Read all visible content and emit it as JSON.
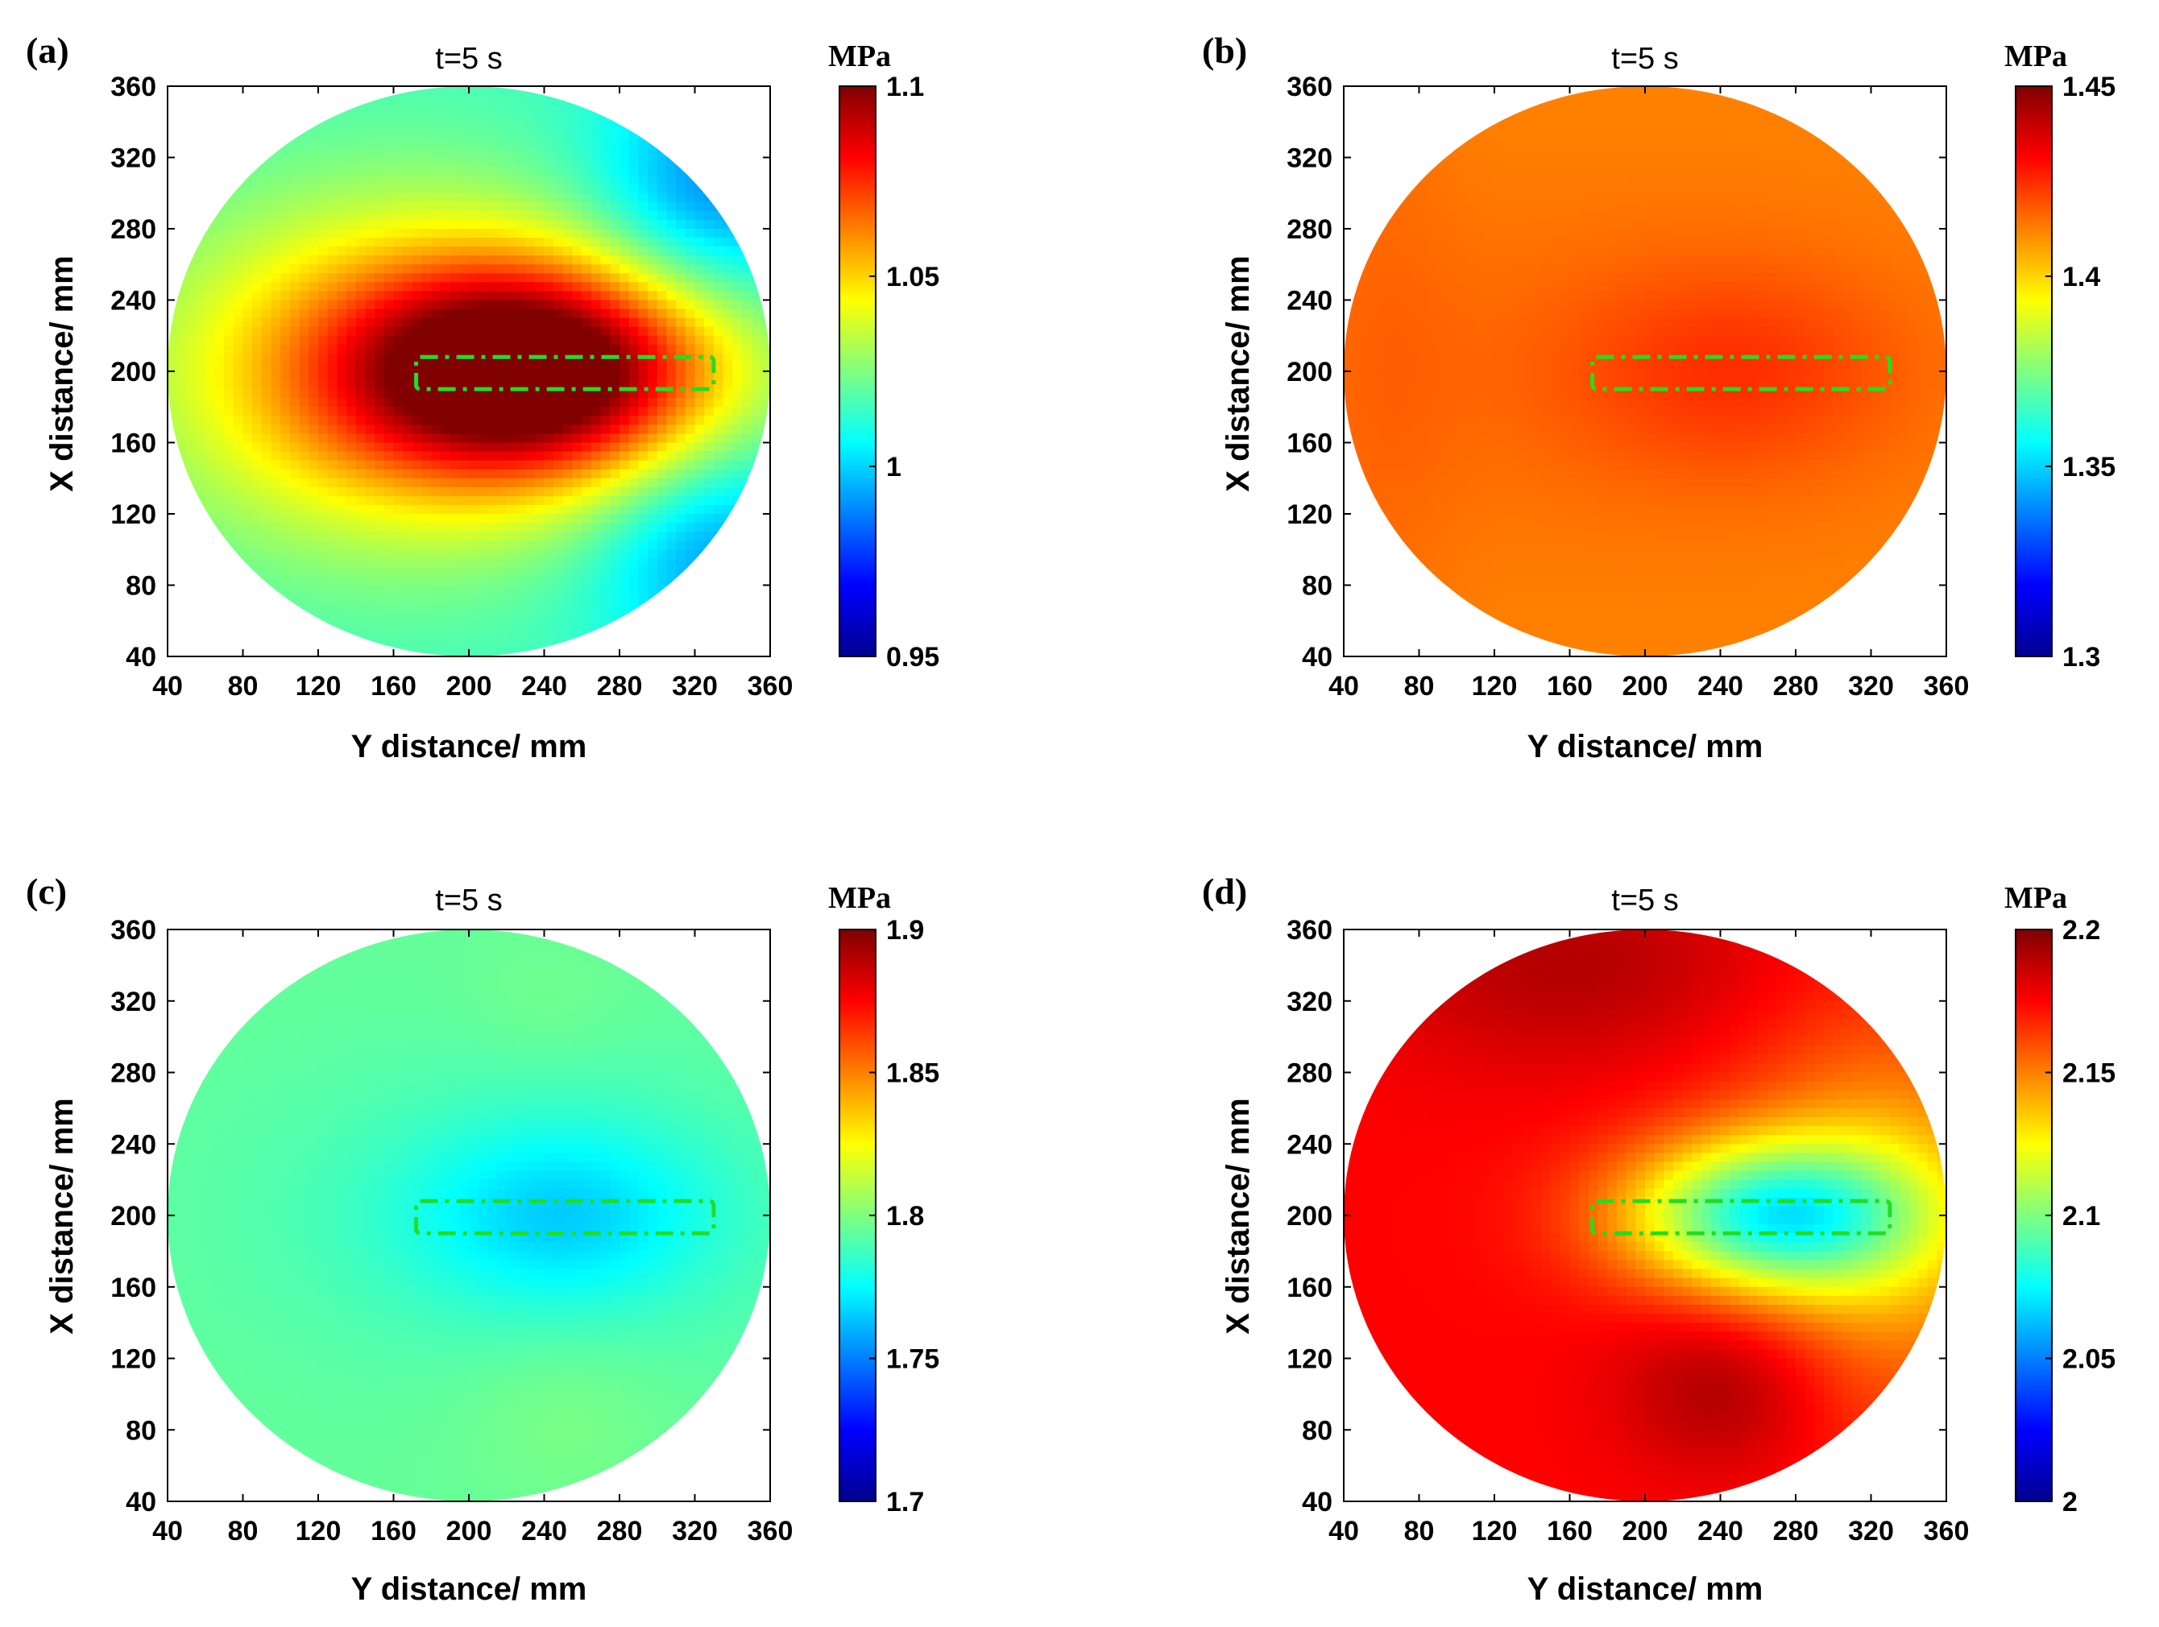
{
  "chart_data": [
    {
      "type": "heatmap",
      "panel_label": "(a)",
      "title": "t=5 s",
      "xlabel": "Y distance/ mm",
      "ylabel": "X distance/ mm",
      "xticks": [
        "40",
        "80",
        "120",
        "160",
        "200",
        "240",
        "280",
        "320",
        "360"
      ],
      "yticks": [
        "40",
        "80",
        "120",
        "160",
        "200",
        "240",
        "280",
        "320",
        "360"
      ],
      "xlim": [
        40,
        360
      ],
      "ylim": [
        40,
        360
      ],
      "colorbar": {
        "unit": "MPa",
        "range": [
          0.95,
          1.1
        ],
        "ticks": [
          "0.95",
          "1",
          "1.05",
          "1.1"
        ]
      },
      "field": {
        "base": 1.015,
        "blobs": [
          {
            "cx": 235,
            "cy": 200,
            "sx": 70,
            "sy": 42,
            "amp": 0.085
          },
          {
            "cx": 160,
            "cy": 200,
            "sx": 95,
            "sy": 70,
            "amp": 0.04
          },
          {
            "cx": 330,
            "cy": 300,
            "sx": 45,
            "sy": 45,
            "amp": -0.028
          },
          {
            "cx": 330,
            "cy": 100,
            "sx": 45,
            "sy": 45,
            "amp": -0.025
          }
        ]
      },
      "sensor_box": {
        "x": [
          172,
          330
        ],
        "y": [
          190,
          208
        ],
        "color": "#22dd22"
      }
    },
    {
      "type": "heatmap",
      "panel_label": "(b)",
      "title": "t=5 s",
      "xlabel": "Y distance/ mm",
      "ylabel": "X distance/ mm",
      "xticks": [
        "40",
        "80",
        "120",
        "160",
        "200",
        "240",
        "280",
        "320",
        "360"
      ],
      "yticks": [
        "40",
        "80",
        "120",
        "160",
        "200",
        "240",
        "280",
        "320",
        "360"
      ],
      "xlim": [
        40,
        360
      ],
      "ylim": [
        40,
        360
      ],
      "colorbar": {
        "unit": "MPa",
        "range": [
          1.3,
          1.45
        ],
        "ticks": [
          "1.3",
          "1.35",
          "1.4",
          "1.45"
        ]
      },
      "field": {
        "base": 1.412,
        "blobs": [
          {
            "cx": 250,
            "cy": 200,
            "sx": 60,
            "sy": 40,
            "amp": 0.009
          },
          {
            "cx": 190,
            "cy": 200,
            "sx": 120,
            "sy": 70,
            "amp": 0.004
          },
          {
            "cx": 60,
            "cy": 200,
            "sx": 30,
            "sy": 150,
            "amp": 0.003
          }
        ]
      },
      "sensor_box": {
        "x": [
          172,
          330
        ],
        "y": [
          190,
          208
        ],
        "color": "#22dd22"
      }
    },
    {
      "type": "heatmap",
      "panel_label": "(c)",
      "title": "t=5 s",
      "xlabel": "Y distance/ mm",
      "ylabel": "X distance/ mm",
      "xticks": [
        "40",
        "80",
        "120",
        "160",
        "200",
        "240",
        "280",
        "320",
        "360"
      ],
      "yticks": [
        "40",
        "80",
        "120",
        "160",
        "200",
        "240",
        "280",
        "320",
        "360"
      ],
      "xlim": [
        40,
        360
      ],
      "ylim": [
        40,
        360
      ],
      "colorbar": {
        "unit": "MPa",
        "range": [
          1.7,
          1.9
        ],
        "ticks": [
          "1.7",
          "1.75",
          "1.8",
          "1.85",
          "1.9"
        ]
      },
      "field": {
        "base": 1.795,
        "blobs": [
          {
            "cx": 250,
            "cy": 200,
            "sx": 55,
            "sy": 35,
            "amp": -0.022
          },
          {
            "cx": 230,
            "cy": 200,
            "sx": 110,
            "sy": 65,
            "amp": -0.008
          },
          {
            "cx": 250,
            "cy": 90,
            "sx": 40,
            "sy": 35,
            "amp": 0.005
          },
          {
            "cx": 240,
            "cy": 320,
            "sx": 30,
            "sy": 25,
            "amp": 0.003
          }
        ]
      },
      "sensor_box": {
        "x": [
          172,
          330
        ],
        "y": [
          190,
          208
        ],
        "color": "#22dd22"
      }
    },
    {
      "type": "heatmap",
      "panel_label": "(d)",
      "title": "t=5 s",
      "xlabel": "Y distance/ mm",
      "ylabel": "X distance/ mm",
      "xticks": [
        "40",
        "80",
        "120",
        "160",
        "200",
        "240",
        "280",
        "320",
        "360"
      ],
      "yticks": [
        "40",
        "80",
        "120",
        "160",
        "200",
        "240",
        "280",
        "320",
        "360"
      ],
      "xlim": [
        40,
        360
      ],
      "ylim": [
        40,
        360
      ],
      "colorbar": {
        "unit": "MPa",
        "range": [
          2.0,
          2.2
        ],
        "ticks": [
          "2",
          "2.05",
          "2.1",
          "2.15",
          "2.2"
        ]
      },
      "field": {
        "base": 2.175,
        "blobs": [
          {
            "cx": 265,
            "cy": 200,
            "sx": 55,
            "sy": 30,
            "amp": -0.085
          },
          {
            "cx": 330,
            "cy": 200,
            "sx": 60,
            "sy": 80,
            "amp": -0.035
          },
          {
            "cx": 245,
            "cy": 105,
            "sx": 40,
            "sy": 35,
            "amp": 0.02
          },
          {
            "cx": 160,
            "cy": 340,
            "sx": 80,
            "sy": 40,
            "amp": 0.015
          }
        ]
      },
      "sensor_box": {
        "x": [
          172,
          330
        ],
        "y": [
          190,
          208
        ],
        "color": "#22dd22"
      }
    }
  ]
}
